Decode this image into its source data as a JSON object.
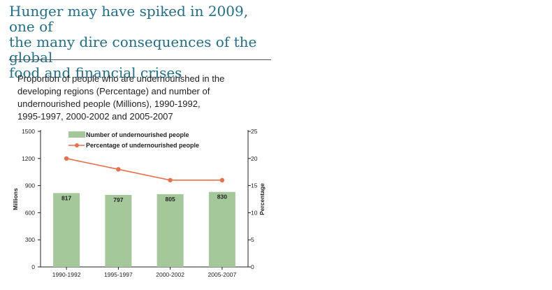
{
  "headline": {
    "lines": [
      "Hunger may have spiked in 2009, one of",
      "the many dire consequences of the global",
      "food and financial crises"
    ]
  },
  "chart_data": {
    "type": "bar",
    "title_lines": [
      "Proportion of people who are undernourished in the",
      "developing regions (Percentage) and number of",
      "undernourished people (Millions), 1990-1992,",
      "1995-1997, 2000-2002 and 2005-2007"
    ],
    "categories": [
      "1990-1992",
      "1995-1997",
      "2000-2002",
      "2005-2007"
    ],
    "series": [
      {
        "name": "Number of undernourished people",
        "type": "bar",
        "axis": "left",
        "color": "#a4c89a",
        "values": [
          817,
          797,
          805,
          830
        ],
        "labels": [
          "817",
          "797",
          "805",
          "830"
        ]
      },
      {
        "name": "Percentage of undernourished people",
        "type": "line",
        "axis": "right",
        "color": "#e8704a",
        "values": [
          20,
          18,
          16,
          16
        ]
      }
    ],
    "ylabel": "Millions",
    "y2label": "Percentage",
    "ylim": [
      0,
      1500
    ],
    "y2lim": [
      0,
      25
    ],
    "yticks": [
      "0",
      "300",
      "600",
      "900",
      "1200",
      "1500"
    ],
    "y2ticks": [
      "0",
      "5",
      "10",
      "15",
      "20",
      "25"
    ],
    "legend_position": "top",
    "grid": false
  }
}
